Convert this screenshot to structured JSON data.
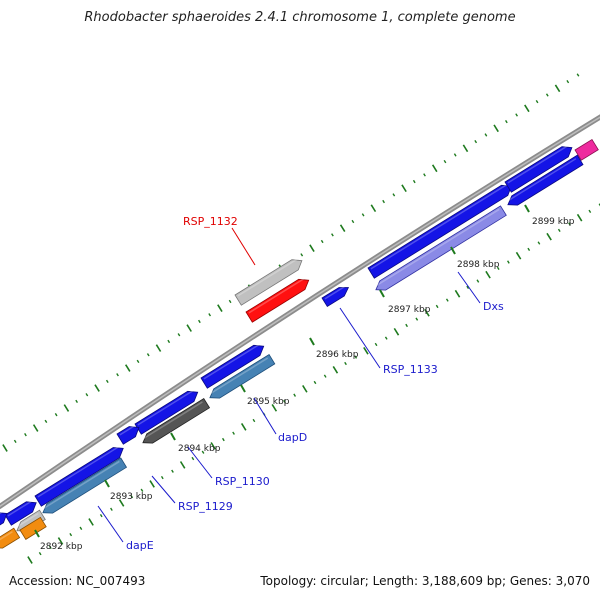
{
  "title": "Rhodobacter sphaeroides 2.4.1 chromosome 1, complete genome",
  "footer": {
    "accession": "Accession: NC_007493",
    "stats": "Topology: circular; Length: 3,188,609 bp; Genes: 3,070"
  },
  "scale_labels": [
    "2892 kbp",
    "2893 kbp",
    "2894 kbp",
    "2895 kbp",
    "2896 kbp",
    "2897 kbp",
    "2898 kbp",
    "2899 kbp"
  ],
  "gene_labels": [
    {
      "text": "RSP_1132",
      "color": "#e00000"
    },
    {
      "text": "RSP_1133",
      "color": "#1a1acc"
    },
    {
      "text": "Dxs",
      "color": "#1a1acc"
    },
    {
      "text": "dapD",
      "color": "#1a1acc"
    },
    {
      "text": "RSP_1130",
      "color": "#1a1acc"
    },
    {
      "text": "RSP_1129",
      "color": "#1a1acc"
    },
    {
      "text": "dapE",
      "color": "#1a1acc"
    }
  ],
  "colors": {
    "cds_forward": "#1414e6",
    "cds_reverse": "#1414e6",
    "gene_steelblue": "#4682b4",
    "gene_gray": "#c0c0c0",
    "gene_darkgray": "#555555",
    "gene_red": "#ff1010",
    "gene_orange": "#f28c10",
    "gene_pink": "#ee2a9e",
    "gene_lavender": "#8a8ae6",
    "backbone": "#888888",
    "gc_ticks": "#1a7a1a"
  }
}
